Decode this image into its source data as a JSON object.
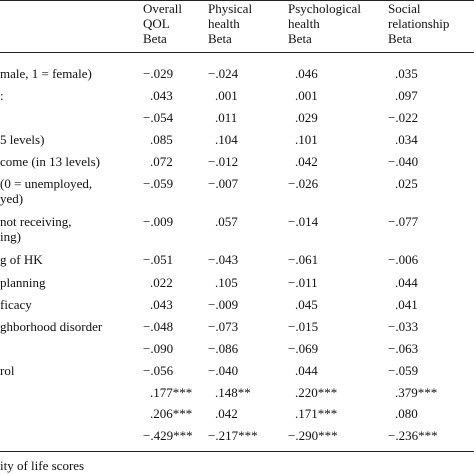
{
  "table": {
    "headers": [
      [
        "Overall",
        "QOL",
        "Beta"
      ],
      [
        "Physical",
        "health",
        "Beta"
      ],
      [
        "Psychological",
        "health",
        "Beta"
      ],
      [
        "Social",
        "relationship",
        "Beta"
      ]
    ],
    "rows": [
      {
        "label": [
          "male, 1 = female)"
        ],
        "values": [
          "−.029",
          "−.024",
          ".046",
          ".035"
        ]
      },
      {
        "label": [
          ":"
        ],
        "values": [
          ".043",
          ".001",
          ".001",
          ".097"
        ]
      },
      {
        "label": null,
        "values": [
          "−.054",
          ".011",
          ".029",
          "−.022"
        ]
      },
      {
        "label": [
          "5 levels)"
        ],
        "values": [
          ".085",
          ".104",
          ".101",
          ".034"
        ]
      },
      {
        "label": [
          "come (in 13 levels)"
        ],
        "values": [
          ".072",
          "−.012",
          ".042",
          "−.040"
        ]
      },
      {
        "label": [
          "(0 = unemployed,",
          "yed)"
        ],
        "values": [
          "−.059",
          "−.007",
          "−.026",
          ".025"
        ]
      },
      {
        "label": [
          "not receiving,",
          "ing)"
        ],
        "values": [
          "−.009",
          ".057",
          "−.014",
          "−.077"
        ]
      },
      {
        "label": [
          "g of HK"
        ],
        "values": [
          "−.051",
          "−.043",
          "−.061",
          "−.006"
        ]
      },
      {
        "label": [
          "planning"
        ],
        "values": [
          ".022",
          ".105",
          "−.011",
          ".044"
        ]
      },
      {
        "label": [
          "ficacy"
        ],
        "values": [
          ".043",
          "−.009",
          ".045",
          ".041"
        ]
      },
      {
        "label": [
          "ghborhood disorder"
        ],
        "values": [
          "−.048",
          "−.073",
          "−.015",
          "−.033"
        ]
      },
      {
        "label": null,
        "values": [
          "−.090",
          "−.086",
          "−.069",
          "−.063"
        ]
      },
      {
        "label": [
          "rol"
        ],
        "values": [
          "−.056",
          "−.040",
          ".044",
          "−.059"
        ]
      },
      {
        "label": null,
        "values": [
          ".177***",
          ".148**",
          ".220***",
          ".379***"
        ]
      },
      {
        "label": null,
        "values": [
          ".206***",
          ".042",
          ".171***",
          ".080"
        ]
      },
      {
        "label": null,
        "values": [
          "−.429***",
          "−.217***",
          "−.290***",
          "−.236***"
        ]
      }
    ],
    "footnote": "ity of life scores"
  }
}
